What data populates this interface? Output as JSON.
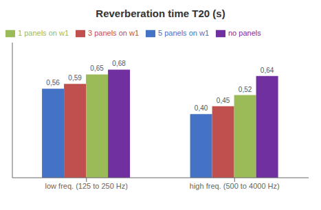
{
  "chart_data": {
    "type": "bar",
    "title": "Reverberation time T20 (s)",
    "categories": [
      "low freq. (125 to 250 Hz)",
      "high freq. (500 to 4000 Hz)"
    ],
    "series": [
      {
        "name": "5 panels on w1",
        "color": "#4472C4",
        "values": [
          0.56,
          0.4
        ],
        "value_labels": [
          "0,56",
          "0,40"
        ]
      },
      {
        "name": "3 panels on w1",
        "color": "#C0504D",
        "values": [
          0.59,
          0.45
        ],
        "value_labels": [
          "0,59",
          "0,45"
        ]
      },
      {
        "name": "1 panels on w1",
        "color": "#9BBB59",
        "values": [
          0.65,
          0.52
        ],
        "value_labels": [
          "0,65",
          "0,52"
        ]
      },
      {
        "name": "no panels",
        "color": "#7030A0",
        "values": [
          0.68,
          0.64
        ],
        "value_labels": [
          "0,68",
          "0,64"
        ]
      }
    ],
    "ylim": [
      0,
      0.85
    ],
    "yticks": [],
    "tick_labels": "x",
    "data_labels": true,
    "legend": "upper left",
    "grid": false
  }
}
